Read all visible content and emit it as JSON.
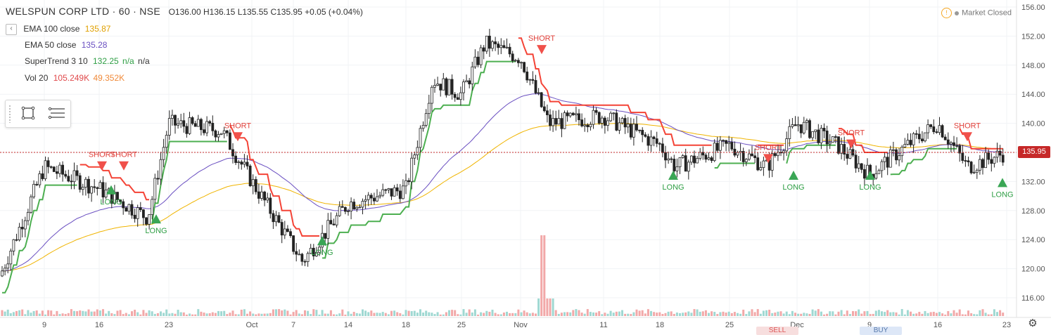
{
  "header": {
    "symbol": "WELSPUN CORP LTD · 60 · NSE",
    "open": "O136.00",
    "high": "H136.15",
    "low": "L135.55",
    "close": "C135.95",
    "change": "+0.05 (+0.04%)"
  },
  "indicators": {
    "ema100": {
      "label": "EMA 100 close",
      "value": "135.87",
      "color": "#f0b400"
    },
    "ema50": {
      "label": "EMA 50 close",
      "value": "135.28",
      "color": "#6a4fc1"
    },
    "supertrend": {
      "label": "SuperTrend 3 10",
      "value": "132.25",
      "extra1": "n/a",
      "extra2": "n/a",
      "color": "#2e9e44"
    },
    "volume": {
      "label": "Vol 20",
      "value1": "105.249K",
      "value2": "49.352K",
      "color": "#e0494b"
    }
  },
  "market_status": {
    "label": "Market Closed",
    "warn_icon": "warning-icon"
  },
  "last_price": "135.95",
  "toolbar": {
    "sell": "SELL",
    "buy": "BUY"
  },
  "colors": {
    "up": "#26a69a",
    "down": "#c62828",
    "candle": "#222222",
    "st_up": "#4caf50",
    "st_down": "#f44336",
    "ema100": "#f0b400",
    "ema50": "#6a4fc1"
  },
  "chart_data": {
    "type": "candlestick",
    "title": "WELSPUN CORP LTD · 60 · NSE",
    "ylim": [
      115,
      157
    ],
    "y_ticks": [
      "156.00",
      "152.00",
      "148.00",
      "144.00",
      "140.00",
      "136.00",
      "132.00",
      "128.00",
      "124.00",
      "120.00",
      "116.00"
    ],
    "x_ticks": [
      "9",
      "16",
      "23",
      "Oct",
      "7",
      "14",
      "18",
      "25",
      "Nov",
      "11",
      "18",
      "25",
      "Dec",
      "9",
      "16",
      "23"
    ],
    "approx_close_path": [
      {
        "x": "start",
        "close": 119
      },
      {
        "x": "9",
        "close": 134
      },
      {
        "x": "16",
        "close": 131
      },
      {
        "x": "20",
        "close": 127
      },
      {
        "x": "23",
        "close": 140
      },
      {
        "x": "30",
        "close": 139
      },
      {
        "x": "Oct",
        "close": 132
      },
      {
        "x": "7",
        "close": 123
      },
      {
        "x": "9",
        "close": 121
      },
      {
        "x": "14",
        "close": 129
      },
      {
        "x": "18",
        "close": 131
      },
      {
        "x": "21",
        "close": 146
      },
      {
        "x": "25",
        "close": 144
      },
      {
        "x": "28",
        "close": 151
      },
      {
        "x": "Nov",
        "close": 149
      },
      {
        "x": "4",
        "close": 140
      },
      {
        "x": "11",
        "close": 141
      },
      {
        "x": "18",
        "close": 137
      },
      {
        "x": "22",
        "close": 134
      },
      {
        "x": "25",
        "close": 137
      },
      {
        "x": "29",
        "close": 134
      },
      {
        "x": "Dec",
        "close": 140
      },
      {
        "x": "6",
        "close": 137
      },
      {
        "x": "9",
        "close": 133
      },
      {
        "x": "13",
        "close": 137
      },
      {
        "x": "16",
        "close": 140
      },
      {
        "x": "20",
        "close": 134
      },
      {
        "x": "23",
        "close": 136
      }
    ],
    "signals": [
      {
        "label": "SHORT",
        "x": "16",
        "price": 134
      },
      {
        "label": "SHORT",
        "x": "17",
        "price": 134
      },
      {
        "label": "LONG",
        "x": "16",
        "price": 131
      },
      {
        "label": "LONG",
        "x": "20",
        "price": 127
      },
      {
        "label": "SHORT",
        "x": "30",
        "price": 138
      },
      {
        "label": "LONG",
        "x": "9",
        "price": 124
      },
      {
        "label": "SHORT",
        "x": "Nov",
        "price": 150
      },
      {
        "label": "LONG",
        "x": "18",
        "price": 133
      },
      {
        "label": "SHORT",
        "x": "29",
        "price": 135
      },
      {
        "label": "LONG",
        "x": "30",
        "price": 133
      },
      {
        "label": "SHORT",
        "x": "6",
        "price": 137
      },
      {
        "label": "LONG",
        "x": "9",
        "price": 133
      },
      {
        "label": "SHORT",
        "x": "18",
        "price": 138
      },
      {
        "label": "LONG",
        "x": "23",
        "price": 132
      }
    ],
    "volume_spike": {
      "x": "Nov",
      "value": "105.249K"
    }
  }
}
